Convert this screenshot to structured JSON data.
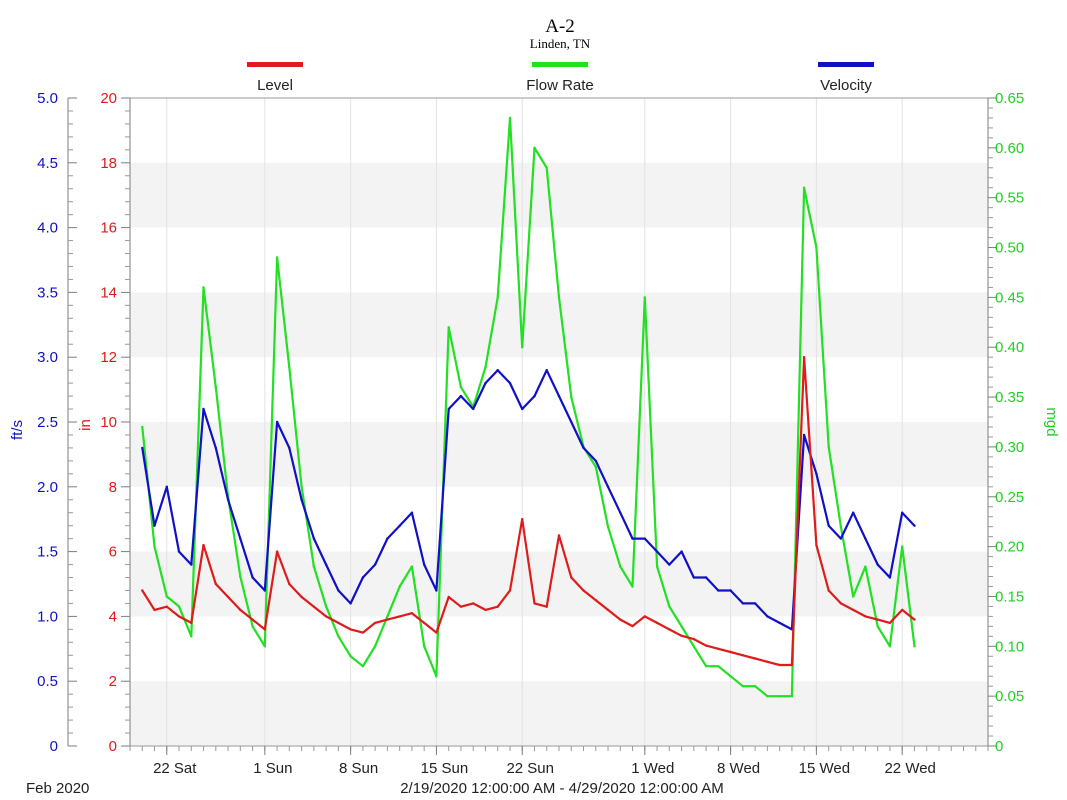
{
  "chart_data": {
    "type": "line",
    "title": "A-2",
    "subtitle": "Linden, TN",
    "legend": {
      "placement": "top",
      "entries": [
        {
          "name": "Level",
          "color": "#e01b1b"
        },
        {
          "name": "Flow Rate",
          "color": "#22e022"
        },
        {
          "name": "Velocity",
          "color": "#1010c8"
        }
      ]
    },
    "axes": {
      "left_velocity": {
        "label": "ft/s",
        "color": "#1010c8",
        "range": [
          0,
          5.0
        ],
        "ticks": [
          "0",
          "0.5",
          "1.0",
          "1.5",
          "2.0",
          "2.5",
          "3.0",
          "3.5",
          "4.0",
          "4.5",
          "5.0"
        ]
      },
      "left_level": {
        "label": "in",
        "color": "#e01b1b",
        "range": [
          0,
          20
        ],
        "ticks": [
          "0",
          "2",
          "4",
          "6",
          "8",
          "10",
          "12",
          "14",
          "16",
          "18",
          "20"
        ]
      },
      "right_flow": {
        "label": "mgd",
        "color": "#22d022",
        "range": [
          0,
          0.65
        ],
        "ticks": [
          "0",
          "0.05",
          "0.10",
          "0.15",
          "0.20",
          "0.25",
          "0.30",
          "0.35",
          "0.40",
          "0.45",
          "0.50",
          "0.55",
          "0.60",
          "0.65"
        ]
      },
      "x": {
        "range": [
          "2020-02-19",
          "2020-04-29"
        ],
        "range_label": "2/19/2020 12:00:00 AM - 4/29/2020 12:00:00 AM",
        "period_label": "Feb 2020",
        "ticks": [
          {
            "label": "22 Sat",
            "date": "2020-02-22"
          },
          {
            "label": "1 Sun",
            "date": "2020-03-01"
          },
          {
            "label": "8 Sun",
            "date": "2020-03-08"
          },
          {
            "label": "15 Sun",
            "date": "2020-03-15"
          },
          {
            "label": "22 Sun",
            "date": "2020-03-22"
          },
          {
            "label": "1 Wed",
            "date": "2020-04-01"
          },
          {
            "label": "8 Wed",
            "date": "2020-04-08"
          },
          {
            "label": "15 Wed",
            "date": "2020-04-15"
          },
          {
            "label": "22 Wed",
            "date": "2020-04-22"
          }
        ]
      }
    },
    "grid": "alternating horizontal bands",
    "series": [
      {
        "name": "Velocity",
        "axis": "left_velocity",
        "color": "#1010c8",
        "x": [
          "2020-02-20",
          "2020-02-21",
          "2020-02-22",
          "2020-02-23",
          "2020-02-24",
          "2020-02-25",
          "2020-02-26",
          "2020-02-27",
          "2020-02-28",
          "2020-02-29",
          "2020-03-01",
          "2020-03-02",
          "2020-03-03",
          "2020-03-04",
          "2020-03-05",
          "2020-03-06",
          "2020-03-07",
          "2020-03-08",
          "2020-03-09",
          "2020-03-10",
          "2020-03-11",
          "2020-03-12",
          "2020-03-13",
          "2020-03-14",
          "2020-03-15",
          "2020-03-16",
          "2020-03-17",
          "2020-03-18",
          "2020-03-19",
          "2020-03-20",
          "2020-03-21",
          "2020-03-22",
          "2020-03-23",
          "2020-03-24",
          "2020-03-25",
          "2020-03-26",
          "2020-03-27",
          "2020-03-28",
          "2020-03-29",
          "2020-03-30",
          "2020-03-31",
          "2020-04-01",
          "2020-04-02",
          "2020-04-03",
          "2020-04-04",
          "2020-04-05",
          "2020-04-06",
          "2020-04-07",
          "2020-04-08",
          "2020-04-09",
          "2020-04-10",
          "2020-04-11",
          "2020-04-12",
          "2020-04-13",
          "2020-04-14",
          "2020-04-15",
          "2020-04-16",
          "2020-04-17",
          "2020-04-18",
          "2020-04-19",
          "2020-04-20",
          "2020-04-21",
          "2020-04-22",
          "2020-04-23"
        ],
        "y": [
          2.3,
          1.7,
          2.0,
          1.5,
          1.4,
          2.6,
          2.3,
          1.9,
          1.6,
          1.3,
          1.2,
          2.5,
          2.3,
          1.9,
          1.6,
          1.4,
          1.2,
          1.1,
          1.3,
          1.4,
          1.6,
          1.7,
          1.8,
          1.4,
          1.2,
          2.6,
          2.7,
          2.6,
          2.8,
          2.9,
          2.8,
          2.6,
          2.7,
          2.9,
          2.7,
          2.5,
          2.3,
          2.2,
          2.0,
          1.8,
          1.6,
          1.6,
          1.5,
          1.4,
          1.5,
          1.3,
          1.3,
          1.2,
          1.2,
          1.1,
          1.1,
          1.0,
          0.95,
          0.9,
          2.4,
          2.1,
          1.7,
          1.6,
          1.8,
          1.6,
          1.4,
          1.3,
          1.8,
          1.7
        ]
      },
      {
        "name": "Level",
        "axis": "left_level",
        "color": "#e01b1b",
        "x": [
          "2020-02-20",
          "2020-02-21",
          "2020-02-22",
          "2020-02-23",
          "2020-02-24",
          "2020-02-25",
          "2020-02-26",
          "2020-02-27",
          "2020-02-28",
          "2020-02-29",
          "2020-03-01",
          "2020-03-02",
          "2020-03-03",
          "2020-03-04",
          "2020-03-05",
          "2020-03-06",
          "2020-03-07",
          "2020-03-08",
          "2020-03-09",
          "2020-03-10",
          "2020-03-11",
          "2020-03-12",
          "2020-03-13",
          "2020-03-14",
          "2020-03-15",
          "2020-03-16",
          "2020-03-17",
          "2020-03-18",
          "2020-03-19",
          "2020-03-20",
          "2020-03-21",
          "2020-03-22",
          "2020-03-23",
          "2020-03-24",
          "2020-03-25",
          "2020-03-26",
          "2020-03-27",
          "2020-03-28",
          "2020-03-29",
          "2020-03-30",
          "2020-03-31",
          "2020-04-01",
          "2020-04-02",
          "2020-04-03",
          "2020-04-04",
          "2020-04-05",
          "2020-04-06",
          "2020-04-07",
          "2020-04-08",
          "2020-04-09",
          "2020-04-10",
          "2020-04-11",
          "2020-04-12",
          "2020-04-13",
          "2020-04-14",
          "2020-04-15",
          "2020-04-16",
          "2020-04-17",
          "2020-04-18",
          "2020-04-19",
          "2020-04-20",
          "2020-04-21",
          "2020-04-22",
          "2020-04-23"
        ],
        "y": [
          4.8,
          4.2,
          4.3,
          4.0,
          3.8,
          6.2,
          5.0,
          4.6,
          4.2,
          3.9,
          3.6,
          6.0,
          5.0,
          4.6,
          4.3,
          4.0,
          3.8,
          3.6,
          3.5,
          3.8,
          3.9,
          4.0,
          4.1,
          3.8,
          3.5,
          4.6,
          4.3,
          4.4,
          4.2,
          4.3,
          4.8,
          7.0,
          4.4,
          4.3,
          6.5,
          5.2,
          4.8,
          4.5,
          4.2,
          3.9,
          3.7,
          4.0,
          3.8,
          3.6,
          3.4,
          3.3,
          3.1,
          3.0,
          2.9,
          2.8,
          2.7,
          2.6,
          2.5,
          2.5,
          12.0,
          6.2,
          4.8,
          4.4,
          4.2,
          4.0,
          3.9,
          3.8,
          4.2,
          3.9
        ]
      },
      {
        "name": "Flow Rate",
        "axis": "right_flow",
        "color": "#22e022",
        "x": [
          "2020-02-20",
          "2020-02-21",
          "2020-02-22",
          "2020-02-23",
          "2020-02-24",
          "2020-02-25",
          "2020-02-26",
          "2020-02-27",
          "2020-02-28",
          "2020-02-29",
          "2020-03-01",
          "2020-03-02",
          "2020-03-03",
          "2020-03-04",
          "2020-03-05",
          "2020-03-06",
          "2020-03-07",
          "2020-03-08",
          "2020-03-09",
          "2020-03-10",
          "2020-03-11",
          "2020-03-12",
          "2020-03-13",
          "2020-03-14",
          "2020-03-15",
          "2020-03-16",
          "2020-03-17",
          "2020-03-18",
          "2020-03-19",
          "2020-03-20",
          "2020-03-21",
          "2020-03-22",
          "2020-03-23",
          "2020-03-24",
          "2020-03-25",
          "2020-03-26",
          "2020-03-27",
          "2020-03-28",
          "2020-03-29",
          "2020-03-30",
          "2020-03-31",
          "2020-04-01",
          "2020-04-02",
          "2020-04-03",
          "2020-04-04",
          "2020-04-05",
          "2020-04-06",
          "2020-04-07",
          "2020-04-08",
          "2020-04-09",
          "2020-04-10",
          "2020-04-11",
          "2020-04-12",
          "2020-04-13",
          "2020-04-14",
          "2020-04-15",
          "2020-04-16",
          "2020-04-17",
          "2020-04-18",
          "2020-04-19",
          "2020-04-20",
          "2020-04-21",
          "2020-04-22",
          "2020-04-23"
        ],
        "y": [
          0.32,
          0.2,
          0.15,
          0.14,
          0.11,
          0.46,
          0.36,
          0.25,
          0.17,
          0.12,
          0.1,
          0.49,
          0.38,
          0.26,
          0.18,
          0.14,
          0.11,
          0.09,
          0.08,
          0.1,
          0.13,
          0.16,
          0.18,
          0.1,
          0.07,
          0.42,
          0.36,
          0.34,
          0.38,
          0.45,
          0.63,
          0.4,
          0.6,
          0.58,
          0.45,
          0.35,
          0.3,
          0.28,
          0.22,
          0.18,
          0.16,
          0.45,
          0.18,
          0.14,
          0.12,
          0.1,
          0.08,
          0.08,
          0.07,
          0.06,
          0.06,
          0.05,
          0.05,
          0.05,
          0.56,
          0.5,
          0.3,
          0.22,
          0.15,
          0.18,
          0.12,
          0.1,
          0.2,
          0.1
        ]
      }
    ]
  }
}
